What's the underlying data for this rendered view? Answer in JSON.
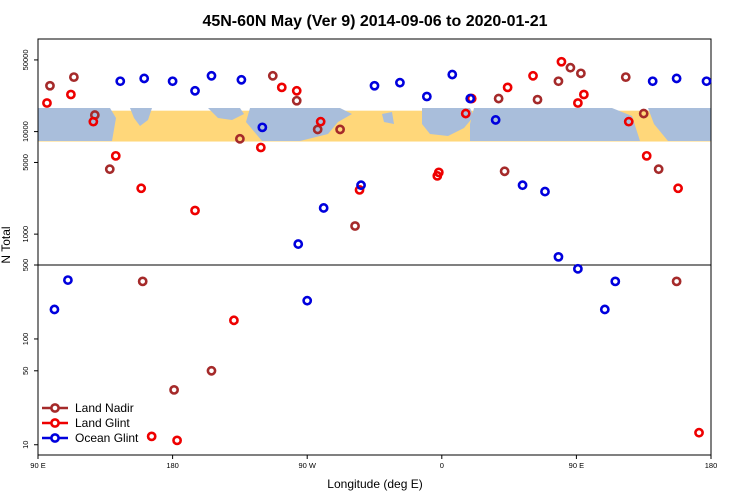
{
  "chart_data": {
    "type": "scatter",
    "title": "45N-60N May (Ver 9)   2014-09-06 to 2020-01-21",
    "xlabel": "Longitude (deg E)",
    "ylabel": "N Total",
    "x_range_deg": [
      90,
      180,
      270,
      360,
      450
    ],
    "x_ticks": [
      {
        "value": 90,
        "label": "90 E"
      },
      {
        "value": 180,
        "label": "180"
      },
      {
        "value": 270,
        "label": "90 W"
      },
      {
        "value": 360,
        "label": "0"
      },
      {
        "value": 450,
        "label": "90 E"
      },
      {
        "value": 540,
        "label": "180"
      }
    ],
    "x_lim": [
      90,
      540
    ],
    "y_scale": "log",
    "y_split_value": 500,
    "upper_panel": {
      "ylim": [
        500,
        80000
      ],
      "ticks": [
        {
          "value": 500,
          "label": "500"
        },
        {
          "value": 1000,
          "label": "1000"
        },
        {
          "value": 5000,
          "label": "5000"
        },
        {
          "value": 10000,
          "label": "10000"
        },
        {
          "value": 50000,
          "label": "50000"
        }
      ],
      "map_band": [
        8000,
        16000
      ]
    },
    "lower_panel": {
      "ylim": [
        8,
        500
      ],
      "ticks": [
        {
          "value": 10,
          "label": "10"
        },
        {
          "value": 50,
          "label": "50"
        },
        {
          "value": 100,
          "label": "100"
        }
      ]
    },
    "series": [
      {
        "name": "Land Nadir",
        "color": "#a52a2a",
        "points": [
          {
            "x": 98,
            "y": 28000
          },
          {
            "x": 114,
            "y": 34000
          },
          {
            "x": 128,
            "y": 14500
          },
          {
            "x": 138,
            "y": 4300
          },
          {
            "x": 160,
            "y": 350
          },
          {
            "x": 181,
            "y": 33
          },
          {
            "x": 206,
            "y": 50
          },
          {
            "x": 225,
            "y": 8500
          },
          {
            "x": 247,
            "y": 35000
          },
          {
            "x": 263,
            "y": 20000
          },
          {
            "x": 277,
            "y": 10500
          },
          {
            "x": 292,
            "y": 10500
          },
          {
            "x": 302,
            "y": 1200
          },
          {
            "x": 398,
            "y": 21000
          },
          {
            "x": 402,
            "y": 4100
          },
          {
            "x": 424,
            "y": 20500
          },
          {
            "x": 438,
            "y": 31000
          },
          {
            "x": 446,
            "y": 42000
          },
          {
            "x": 453,
            "y": 37000
          },
          {
            "x": 483,
            "y": 34000
          },
          {
            "x": 495,
            "y": 15000
          },
          {
            "x": 505,
            "y": 4300
          },
          {
            "x": 517,
            "y": 350
          }
        ]
      },
      {
        "name": "Land Glint",
        "color": "#ee0000",
        "points": [
          {
            "x": 96,
            "y": 19000
          },
          {
            "x": 112,
            "y": 23000
          },
          {
            "x": 127,
            "y": 12500
          },
          {
            "x": 142,
            "y": 5800
          },
          {
            "x": 159,
            "y": 2800
          },
          {
            "x": 166,
            "y": 12
          },
          {
            "x": 183,
            "y": 11
          },
          {
            "x": 195,
            "y": 1700
          },
          {
            "x": 221,
            "y": 150
          },
          {
            "x": 239,
            "y": 7000
          },
          {
            "x": 253,
            "y": 27000
          },
          {
            "x": 263,
            "y": 25000
          },
          {
            "x": 279,
            "y": 12500
          },
          {
            "x": 305,
            "y": 2700
          },
          {
            "x": 357,
            "y": 3700
          },
          {
            "x": 358,
            "y": 4000
          },
          {
            "x": 376,
            "y": 15000
          },
          {
            "x": 380,
            "y": 21000
          },
          {
            "x": 404,
            "y": 27000
          },
          {
            "x": 421,
            "y": 35000
          },
          {
            "x": 440,
            "y": 48000
          },
          {
            "x": 451,
            "y": 19000
          },
          {
            "x": 455,
            "y": 23000
          },
          {
            "x": 485,
            "y": 12500
          },
          {
            "x": 497,
            "y": 5800
          },
          {
            "x": 518,
            "y": 2800
          },
          {
            "x": 532,
            "y": 13
          }
        ]
      },
      {
        "name": "Ocean Glint",
        "color": "#0000dd",
        "points": [
          {
            "x": 101,
            "y": 190
          },
          {
            "x": 110,
            "y": 360
          },
          {
            "x": 145,
            "y": 31000
          },
          {
            "x": 161,
            "y": 33000
          },
          {
            "x": 180,
            "y": 31000
          },
          {
            "x": 195,
            "y": 25000
          },
          {
            "x": 206,
            "y": 35000
          },
          {
            "x": 226,
            "y": 32000
          },
          {
            "x": 240,
            "y": 11000
          },
          {
            "x": 264,
            "y": 800
          },
          {
            "x": 270,
            "y": 230
          },
          {
            "x": 281,
            "y": 1800
          },
          {
            "x": 306,
            "y": 3000
          },
          {
            "x": 315,
            "y": 28000
          },
          {
            "x": 332,
            "y": 30000
          },
          {
            "x": 350,
            "y": 22000
          },
          {
            "x": 367,
            "y": 36000
          },
          {
            "x": 379,
            "y": 21000
          },
          {
            "x": 396,
            "y": 13000
          },
          {
            "x": 414,
            "y": 3000
          },
          {
            "x": 429,
            "y": 2600
          },
          {
            "x": 438,
            "y": 600
          },
          {
            "x": 451,
            "y": 460
          },
          {
            "x": 469,
            "y": 190
          },
          {
            "x": 476,
            "y": 350
          },
          {
            "x": 501,
            "y": 31000
          },
          {
            "x": 517,
            "y": 33000
          },
          {
            "x": 537,
            "y": 31000
          }
        ]
      }
    ],
    "legend_position": "bottom-left"
  }
}
